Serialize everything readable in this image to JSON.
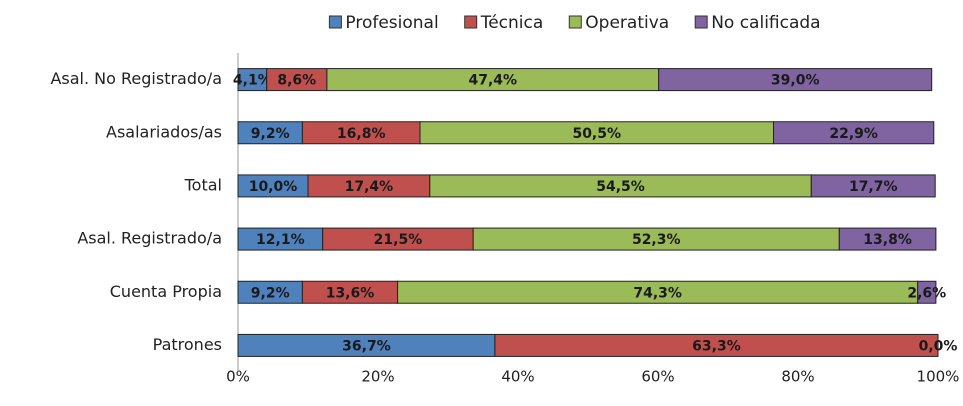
{
  "chart_data": {
    "type": "stacked_bar_horizontal",
    "categories": [
      "Asal. No Registrado/a",
      "Asalariados/as",
      "Total",
      "Asal. Registrado/a",
      "Cuenta Propia",
      "Patrones"
    ],
    "series": [
      {
        "name": "Profesional",
        "color": "#4f81bd",
        "values": [
          4.1,
          9.2,
          10.0,
          12.1,
          9.2,
          36.7
        ],
        "value_labels": [
          "4,1%",
          "9,2%",
          "10,0%",
          "12,1%",
          "9,2%",
          "36,7%"
        ]
      },
      {
        "name": "Técnica",
        "color": "#c0504d",
        "values": [
          8.6,
          16.8,
          17.4,
          21.5,
          13.6,
          63.3
        ],
        "value_labels": [
          "8,6%",
          "16,8%",
          "17,4%",
          "21,5%",
          "13,6%",
          "63,3%"
        ]
      },
      {
        "name": "Operativa",
        "color": "#9bbb59",
        "values": [
          47.4,
          50.5,
          54.5,
          52.3,
          74.3,
          0
        ],
        "value_labels": [
          "47,4%",
          "50,5%",
          "54,5%",
          "52,3%",
          "74,3%",
          null
        ]
      },
      {
        "name": "No calificada",
        "color": "#8064a2",
        "values": [
          39.0,
          22.9,
          17.7,
          13.8,
          2.6,
          0.0
        ],
        "value_labels": [
          "39,0%",
          "22,9%",
          "17,7%",
          "13,8%",
          "2,6%",
          "0,0%"
        ]
      }
    ],
    "xlim": [
      0,
      100
    ],
    "xticks": [
      {
        "value": 0,
        "label": "0%"
      },
      {
        "value": 20,
        "label": "20%"
      },
      {
        "value": 40,
        "label": "40%"
      },
      {
        "value": 60,
        "label": "60%"
      },
      {
        "value": 80,
        "label": "80%"
      },
      {
        "value": 100,
        "label": "100%"
      }
    ],
    "legend": "top"
  }
}
